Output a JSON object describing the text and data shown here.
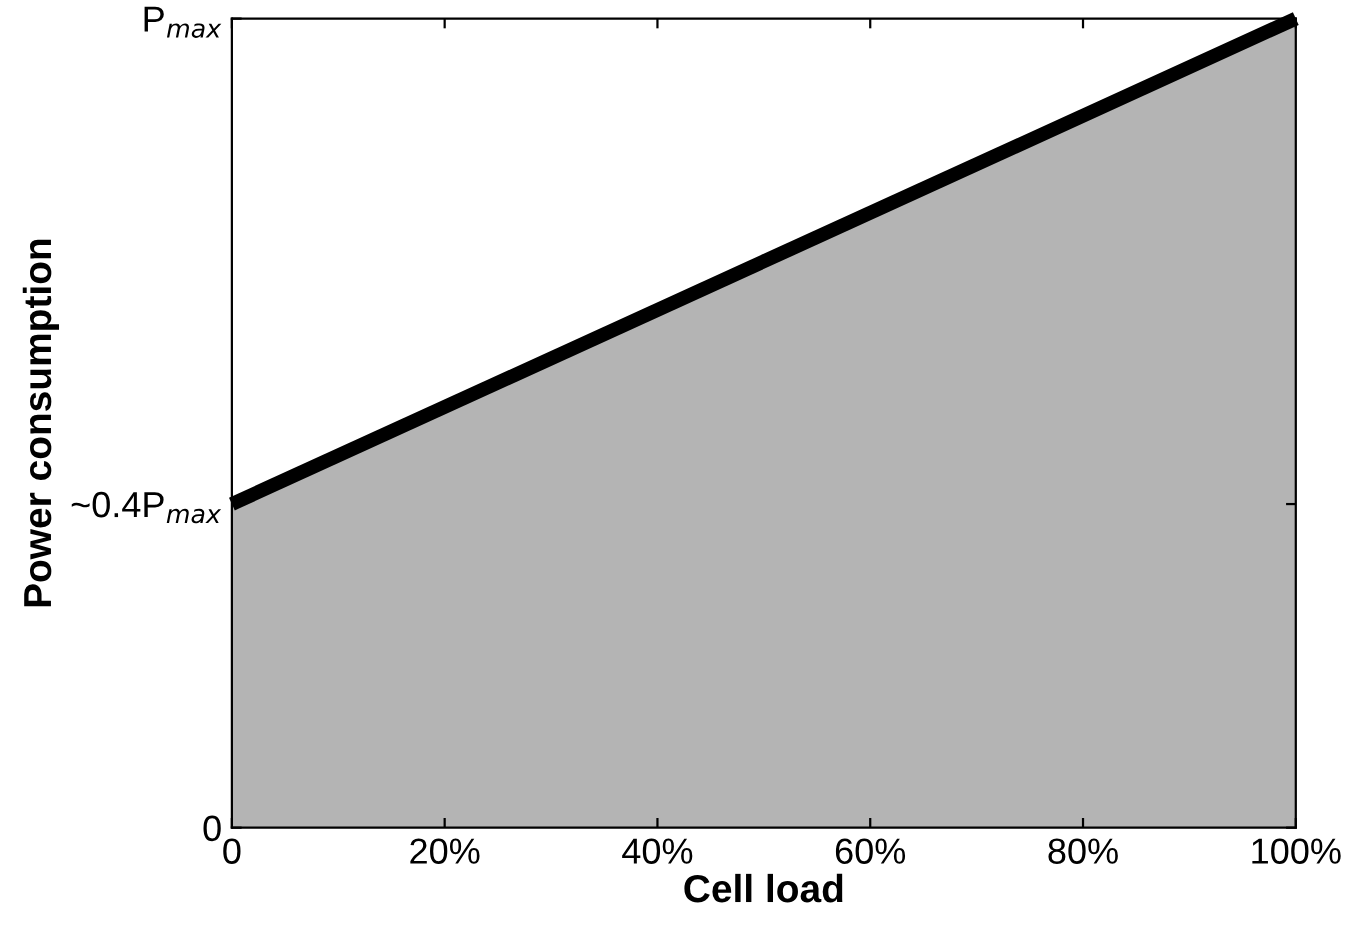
{
  "chart_data": {
    "type": "area",
    "xlabel": "Cell load",
    "ylabel": "Power consumption",
    "x": [
      0,
      100
    ],
    "series": [
      {
        "type": "area",
        "color": "#b4b4b4",
        "values": [
          0.4,
          1
        ]
      }
    ],
    "xlim": [
      0,
      100
    ],
    "ylim": [
      0,
      1
    ],
    "xticks": [
      0,
      {
        "value": 20,
        "label": "20%"
      },
      {
        "value": 40,
        "label": "40%"
      },
      {
        "value": 60,
        "label": "60%"
      },
      {
        "value": 80,
        "label": "80%"
      },
      {
        "value": 100,
        "label": "100%"
      }
    ],
    "yticks": [
      0,
      {
        "value": 0.4,
        "label": "~0.4P$_{max}$"
      },
      {
        "value": 1,
        "label": "P$_{max}$"
      }
    ],
    "grid": false,
    "legend": false,
    "marker": "none",
    "line_style": "solid"
  }
}
